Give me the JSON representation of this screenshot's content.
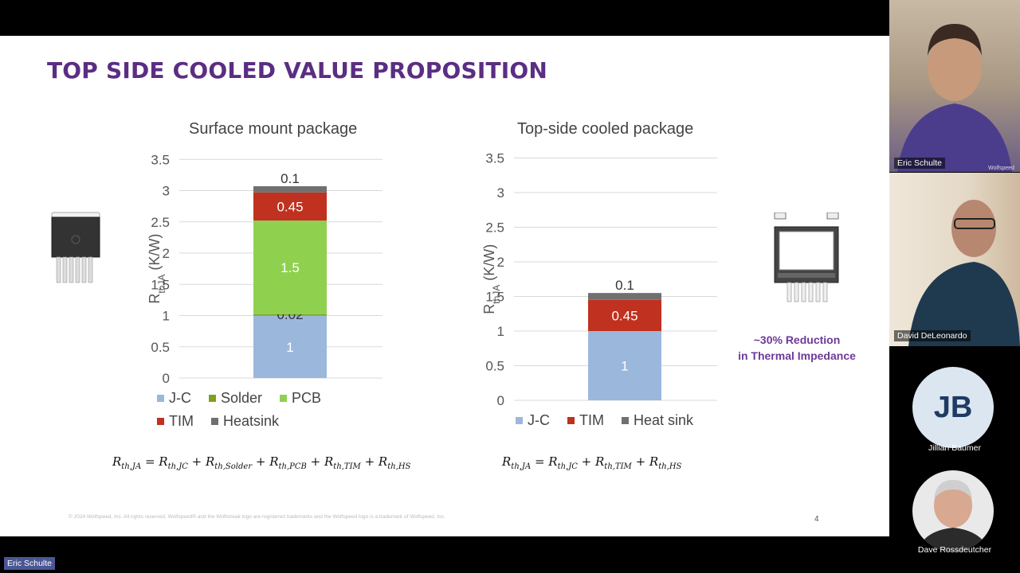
{
  "slide": {
    "title": "TOP SIDE COOLED VALUE PROPOSITION",
    "reduction_line1": "~30% Reduction",
    "reduction_line2": "in Thermal Impedance",
    "copyright": "© 2024 Wolfspeed, Inc. All rights reserved. Wolfspeed® and the Wolfstreak logo are registered trademarks and the Wolfspeed logo is a trademark of Wolfspeed, Inc.",
    "page_number": "4"
  },
  "chart_data": [
    {
      "type": "bar",
      "stacked": true,
      "title": "Surface mount package",
      "ylabel": "R",
      "ylabel_sub": "thJA",
      "ylabel_unit": " (K/W)",
      "ylim": [
        0,
        3.5
      ],
      "yticks": [
        "0",
        "0.5",
        "1",
        "1.5",
        "2",
        "2.5",
        "3",
        "3.5"
      ],
      "grid": true,
      "legend_placement": "bottom",
      "series": [
        {
          "name": "J-C",
          "value": 1,
          "label": "1",
          "color": "#9bb8dc"
        },
        {
          "name": "Solder",
          "value": 0.02,
          "label": "0.02",
          "color": "#7ea01e"
        },
        {
          "name": "PCB",
          "value": 1.5,
          "label": "1.5",
          "color": "#8fd14f"
        },
        {
          "name": "TIM",
          "value": 0.45,
          "label": "0.45",
          "color": "#c0311f"
        },
        {
          "name": "Heatsink",
          "value": 0.1,
          "label": "0.1",
          "color": "#707070"
        }
      ]
    },
    {
      "type": "bar",
      "stacked": true,
      "title": "Top-side cooled package",
      "ylabel": "R",
      "ylabel_sub": "thJA",
      "ylabel_unit": " (K/W)",
      "ylim": [
        0,
        3.5
      ],
      "yticks": [
        "0",
        "0.5",
        "1",
        "1.5",
        "2",
        "2.5",
        "3",
        "3.5"
      ],
      "grid": true,
      "legend_placement": "bottom",
      "series": [
        {
          "name": "J-C",
          "value": 1,
          "label": "1",
          "color": "#9bb8dc"
        },
        {
          "name": "TIM",
          "value": 0.45,
          "label": "0.45",
          "color": "#c0311f"
        },
        {
          "name": "Heat sink",
          "value": 0.1,
          "label": "0.1",
          "color": "#707070"
        }
      ]
    }
  ],
  "formulas": {
    "left": {
      "lhs": "R",
      "lhs_sub": "th,JA",
      "terms": [
        {
          "sym": "R",
          "sub": "th,JC"
        },
        {
          "sym": "R",
          "sub": "th,Solder"
        },
        {
          "sym": "R",
          "sub": "th,PCB"
        },
        {
          "sym": "R",
          "sub": "th,TIM"
        },
        {
          "sym": "R",
          "sub": "th,HS"
        }
      ]
    },
    "right": {
      "lhs": "R",
      "lhs_sub": "th,JA",
      "terms": [
        {
          "sym": "R",
          "sub": "th,JC"
        },
        {
          "sym": "R",
          "sub": "th,TIM"
        },
        {
          "sym": "R",
          "sub": "th,HS"
        }
      ]
    }
  },
  "participants": {
    "eric": {
      "name": "Eric Schulte",
      "shirt_brand": "Wolfspeed"
    },
    "david": {
      "name": "David DeLeonardo"
    },
    "jillian": {
      "name": "Jillian Baumer",
      "initials": "JB"
    },
    "dave": {
      "name": "Dave Rossdeutcher"
    }
  },
  "presenter_tag": "Eric Schulte"
}
